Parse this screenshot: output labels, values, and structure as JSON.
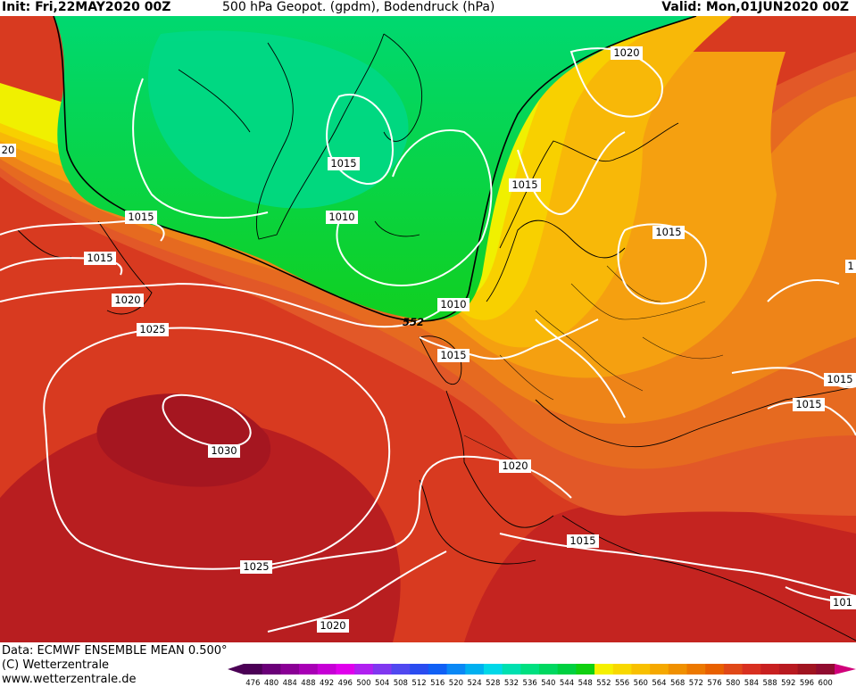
{
  "header": {
    "init": "Init: Fri,22MAY2020 00Z",
    "title": "500 hPa Geopot. (gpdm), Bodendruck (hPa)",
    "valid": "Valid: Mon,01JUN2020 00Z"
  },
  "footer": {
    "data_line": "Data: ECMWF ENSEMBLE MEAN 0.500°",
    "copyright": "(C) Wetterzentrale",
    "url": "www.wetterzentrale.de"
  },
  "pressure_labels": {
    "p1": "1020",
    "p2": "20",
    "p3": "1015",
    "p4": "1010",
    "p5": "1015",
    "p6": "1015",
    "p7": "1015",
    "p8": "1020",
    "p9": "1025",
    "p10": "1030",
    "p11": "1025",
    "p12": "1020",
    "p13": "1010",
    "p14": "1015",
    "p15": "1015",
    "p16": "1020",
    "p17": "1015",
    "p18": "1015",
    "p19": "1015",
    "p20": "1",
    "p21": "101"
  },
  "geopot_label": "552",
  "legend": {
    "values": [
      "476",
      "480",
      "484",
      "488",
      "492",
      "496",
      "500",
      "504",
      "508",
      "512",
      "516",
      "520",
      "524",
      "528",
      "532",
      "536",
      "540",
      "544",
      "548",
      "552",
      "556",
      "560",
      "564",
      "568",
      "572",
      "576",
      "580",
      "584",
      "588",
      "592",
      "596",
      "600"
    ],
    "colors": [
      "#4b0055",
      "#6a0078",
      "#8a0095",
      "#a800b5",
      "#c600d5",
      "#e000ec",
      "#b020f0",
      "#8038f0",
      "#5048f0",
      "#2a4cf0",
      "#1060f5",
      "#0a88f5",
      "#00b0f0",
      "#00d8e8",
      "#00e0b0",
      "#00e080",
      "#00d860",
      "#00d040",
      "#10d010",
      "#f5f000",
      "#f8d800",
      "#f8c000",
      "#f5a800",
      "#f09000",
      "#ec7800",
      "#e86000",
      "#e04818",
      "#d83020",
      "#c82020",
      "#b81a20",
      "#a01420",
      "#900c30"
    ]
  }
}
